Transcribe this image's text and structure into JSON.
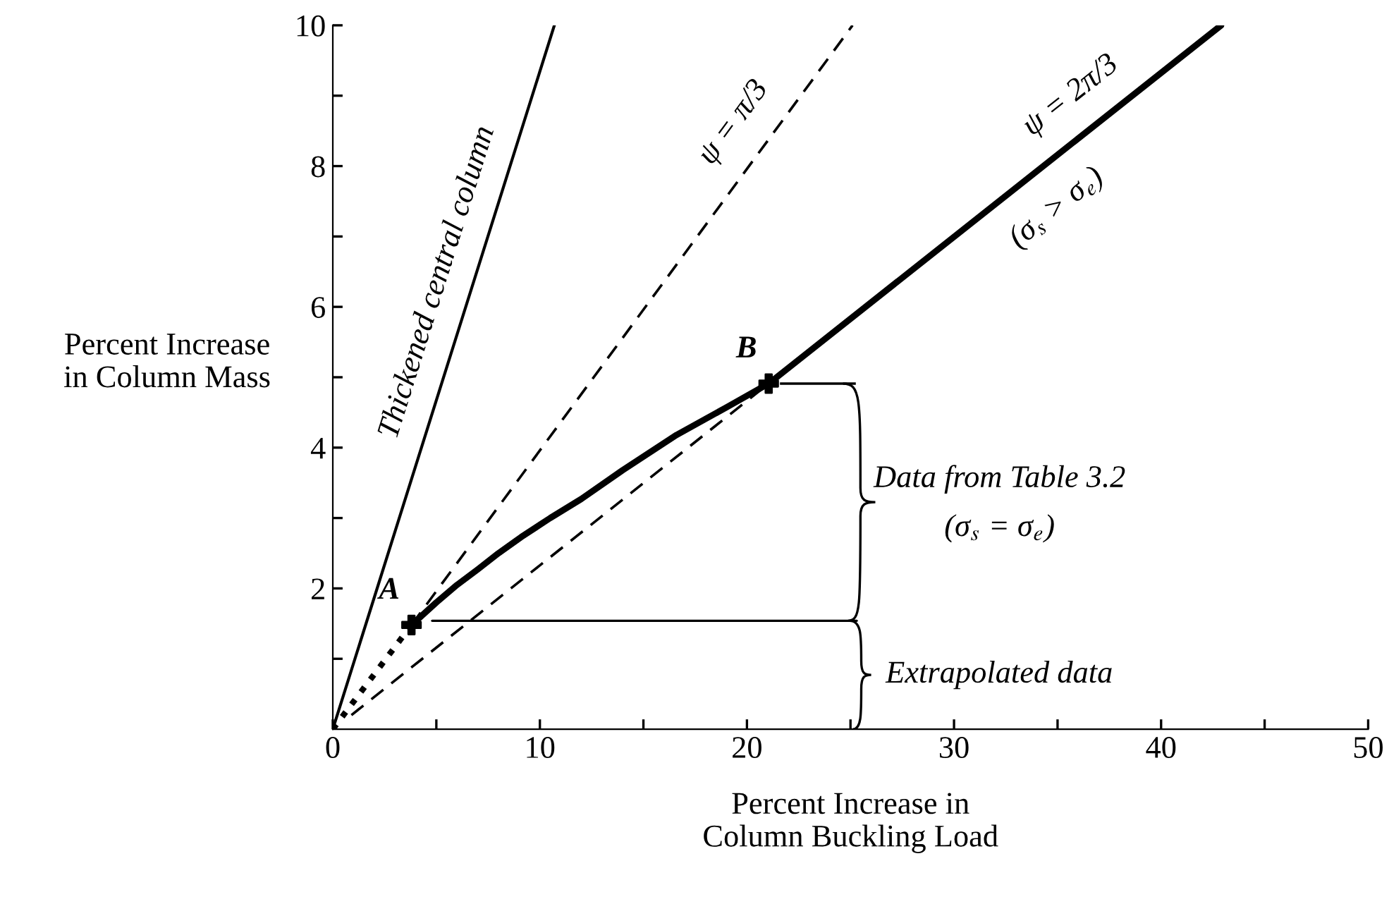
{
  "chart_data": {
    "type": "line",
    "xlabel": "Percent Increase in\nColumn Buckling Load",
    "ylabel": "Percent Increase\nin Column Mass",
    "xlim": [
      0,
      50
    ],
    "ylim": [
      0,
      10
    ],
    "xticks": [
      0,
      {
        "value": 5,
        "label": null
      },
      10,
      {
        "value": 15,
        "label": null
      },
      20,
      {
        "value": 25,
        "label": null
      },
      30,
      {
        "value": 35,
        "label": null
      },
      40,
      {
        "value": 45,
        "label": null
      },
      50
    ],
    "yticks": [
      {
        "value": 1,
        "label": null
      },
      2,
      {
        "value": 3,
        "label": null
      },
      4,
      {
        "value": 5,
        "label": null
      },
      6,
      {
        "value": 7,
        "label": null
      },
      8,
      {
        "value": 9,
        "label": null
      },
      10
    ],
    "grid": false,
    "series": [
      {
        "name": "Thickened central column",
        "type": "line",
        "color": "#000000",
        "line_style": "solid",
        "x": [
          0,
          10.7
        ],
        "values": [
          0,
          10
        ]
      },
      {
        "name": "ψ = π/3",
        "type": "line",
        "color": "#000000",
        "line_style": "dashed",
        "x": [
          3.8,
          25.1
        ],
        "values": [
          1.48,
          10
        ]
      },
      {
        "type": "line",
        "color": "#000000",
        "line_style": "dashed",
        "x": [
          0.9,
          21.05
        ],
        "values": [
          0.2,
          4.91
        ]
      },
      {
        "type": "line",
        "color": "#000000",
        "line_style": "dotted",
        "x": [
          0,
          3.8
        ],
        "values": [
          0,
          1.48
        ]
      },
      {
        "color": "#000000",
        "line_style": "solid",
        "x": [
          3.8,
          5,
          6,
          7,
          8,
          9.1,
          10.5,
          12,
          14,
          16.6,
          19,
          21.05
        ],
        "values": [
          1.48,
          1.8,
          2.05,
          2.27,
          2.5,
          2.73,
          3.0,
          3.27,
          3.68,
          4.18,
          4.57,
          4.91
        ]
      },
      {
        "name": "ψ = 2π/3",
        "type": "line",
        "color": "#000000",
        "line_style": "solid",
        "x": [
          21.05,
          42.9
        ],
        "values": [
          4.91,
          10
        ]
      },
      {
        "type": "scatter",
        "color": "#000000",
        "marker": "cross",
        "x": [
          3.8,
          21.05
        ],
        "values": [
          1.48,
          4.91
        ]
      },
      {
        "color": "#000000",
        "line_style": "solid",
        "x": [
          4.8,
          25.3
        ],
        "values": [
          1.54,
          1.54
        ]
      }
    ],
    "annotations": [
      {
        "text": "A",
        "x": 3.8,
        "y": 1.48
      },
      {
        "text": "B",
        "x": 21.05,
        "y": 4.91
      },
      "(σ$_{s}$ > σ$_{e}$)",
      "Data from Table 3.2",
      "(σ$_{s}$ = σ$_{e}$)",
      "Extrapolated data"
    ]
  }
}
